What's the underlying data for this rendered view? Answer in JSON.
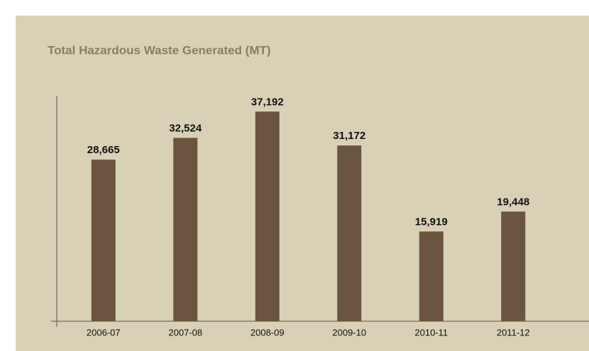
{
  "chart_data": {
    "type": "bar",
    "title": "Total Hazardous Waste Generated (MT)",
    "categories": [
      "2006-07",
      "2007-08",
      "2008-09",
      "2009-10",
      "2010-11",
      "2011-12"
    ],
    "values": [
      28665,
      32524,
      37192,
      31172,
      15919,
      19448
    ],
    "value_labels": [
      "28,665",
      "32,524",
      "37,192",
      "31,172",
      "15,919",
      "19,448"
    ],
    "color": "#6b5440",
    "ylim": [
      0,
      40000
    ]
  }
}
